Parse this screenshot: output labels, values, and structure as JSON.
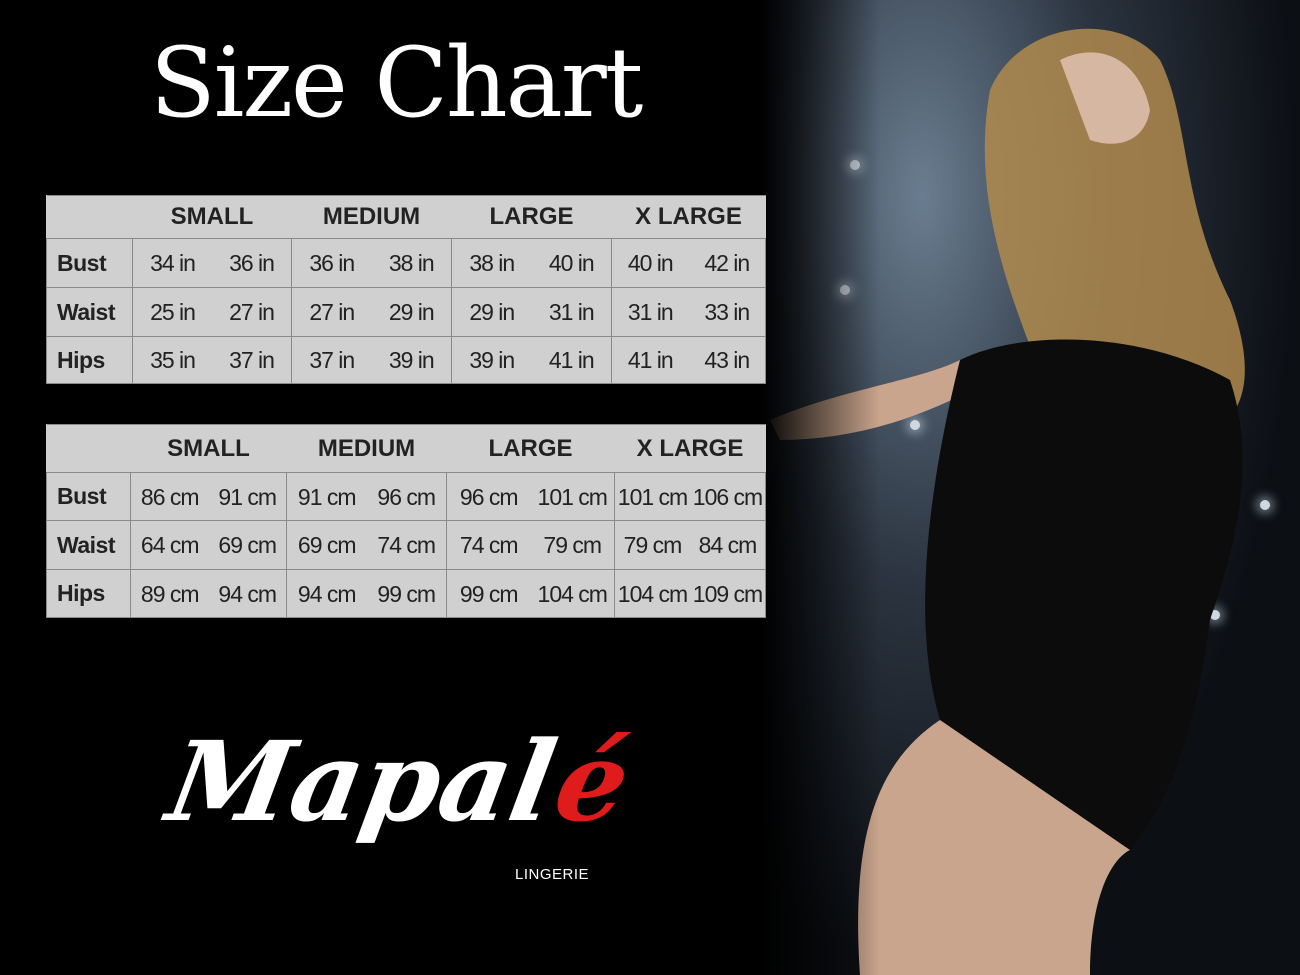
{
  "title": "Size Chart",
  "sizes": [
    "SMALL",
    "MEDIUM",
    "LARGE",
    "X LARGE"
  ],
  "inches": {
    "rows": [
      {
        "label": "Bust",
        "values": [
          "34 in",
          "36 in",
          "36 in",
          "38 in",
          "38 in",
          "40 in",
          "40 in",
          "42 in"
        ]
      },
      {
        "label": "Waist",
        "values": [
          "25 in",
          "27 in",
          "27 in",
          "29 in",
          "29 in",
          "31 in",
          "31 in",
          "33 in"
        ]
      },
      {
        "label": "Hips",
        "values": [
          "35 in",
          "37 in",
          "37 in",
          "39 in",
          "39 in",
          "41 in",
          "41 in",
          "43 in"
        ]
      }
    ]
  },
  "cm": {
    "rows": [
      {
        "label": "Bust",
        "values": [
          "86 cm",
          "91 cm",
          "91 cm",
          "96 cm",
          "96 cm",
          "101 cm",
          "101 cm",
          "106 cm"
        ]
      },
      {
        "label": "Waist",
        "values": [
          "64 cm",
          "69 cm",
          "69 cm",
          "74 cm",
          "74 cm",
          "79  cm",
          "79 cm",
          "84 cm"
        ]
      },
      {
        "label": "Hips",
        "values": [
          "89 cm",
          "94 cm",
          "94 cm",
          "99 cm",
          "99 cm",
          "104 cm",
          "104 cm",
          "109 cm"
        ]
      }
    ]
  },
  "logo": {
    "text_main": "Mapal",
    "text_accent": "é",
    "subtitle": "LINGERIE"
  },
  "colors": {
    "table_bg": "#d0d0d0",
    "accent": "#e01b1b",
    "background": "#000000"
  }
}
